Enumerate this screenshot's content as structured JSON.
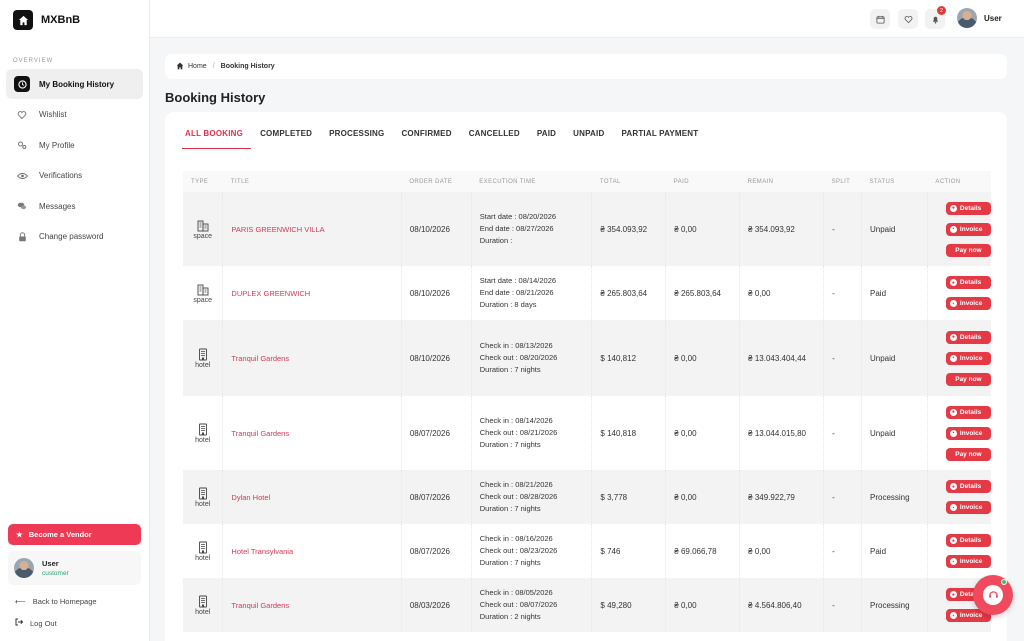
{
  "brand": {
    "name": "MXBnB",
    "logo_icon": "home-icon"
  },
  "sidebar": {
    "section_label": "OVERVIEW",
    "items": [
      {
        "label": "My Booking History",
        "icon": "clock-icon",
        "active": true
      },
      {
        "label": "Wishlist",
        "icon": "heart-icon",
        "active": false
      },
      {
        "label": "My Profile",
        "icon": "gears-icon",
        "active": false
      },
      {
        "label": "Verifications",
        "icon": "eye-icon",
        "active": false
      },
      {
        "label": "Messages",
        "icon": "chat-icon",
        "active": false
      },
      {
        "label": "Change password",
        "icon": "lock-icon",
        "active": false
      }
    ],
    "vendor_button": "Become a Vendor",
    "user": {
      "name": "User",
      "role": "customer"
    },
    "back_link": "Back to Homepage",
    "logout_link": "Log Out"
  },
  "topbar": {
    "user_name": "User",
    "notification_count": "2"
  },
  "breadcrumb": {
    "home": "Home",
    "current": "Booking History"
  },
  "page_title": "Booking History",
  "tabs": [
    "ALL BOOKING",
    "COMPLETED",
    "PROCESSING",
    "CONFIRMED",
    "CANCELLED",
    "PAID",
    "UNPAID",
    "PARTIAL PAYMENT"
  ],
  "table": {
    "headers": [
      "TYPE",
      "TITLE",
      "ORDER DATE",
      "EXECUTION TIME",
      "TOTAL",
      "PAID",
      "REMAIN",
      "SPLIT",
      "STATUS",
      "ACTION"
    ],
    "action_labels": {
      "details": "Details",
      "invoice": "Invoice",
      "pay": "Pay now"
    },
    "rows": [
      {
        "type": "space",
        "title": "PARIS GREENWICH VILLA",
        "order_date": "08/10/2026",
        "exec": [
          "Start date : 08/20/2026",
          "End date : 08/27/2026",
          "Duration :"
        ],
        "total": "₴ 354.093,92",
        "paid": "₴ 0,00",
        "remain": "₴ 354.093,92",
        "split": "-",
        "status": "Unpaid"
      },
      {
        "type": "space",
        "title": "DUPLEX GREENWICH",
        "order_date": "08/10/2026",
        "exec": [
          "Start date : 08/14/2026",
          "End date : 08/21/2026",
          "Duration : 8 days"
        ],
        "total": "₴ 265.803,64",
        "paid": "₴ 265.803,64",
        "remain": "₴ 0,00",
        "split": "-",
        "status": "Paid"
      },
      {
        "type": "hotel",
        "title": "Tranquil Gardens",
        "order_date": "08/10/2026",
        "exec": [
          "Check in : 08/13/2026",
          "Check out : 08/20/2026",
          "Duration : 7 nights"
        ],
        "total": "$ 140,812",
        "paid": "₴ 0,00",
        "remain": "₴ 13.043.404,44",
        "split": "-",
        "status": "Unpaid"
      },
      {
        "type": "hotel",
        "title": "Tranquil Gardens",
        "order_date": "08/07/2026",
        "exec": [
          "Check in : 08/14/2026",
          "Check out : 08/21/2026",
          "Duration : 7 nights"
        ],
        "total": "$ 140,818",
        "paid": "₴ 0,00",
        "remain": "₴ 13.044.015,80",
        "split": "-",
        "status": "Unpaid"
      },
      {
        "type": "hotel",
        "title": "Dylan Hotel",
        "order_date": "08/07/2026",
        "exec": [
          "Check in : 08/21/2026",
          "Check out : 08/28/2026",
          "Duration : 7 nights"
        ],
        "total": "$ 3,778",
        "paid": "₴ 0,00",
        "remain": "₴ 349.922,79",
        "split": "-",
        "status": "Processing"
      },
      {
        "type": "hotel",
        "title": "Hotel Transylvania",
        "order_date": "08/07/2026",
        "exec": [
          "Check in : 08/16/2026",
          "Check out : 08/23/2026",
          "Duration : 7 nights"
        ],
        "total": "$ 746",
        "paid": "₴ 69.066,78",
        "remain": "₴ 0,00",
        "split": "-",
        "status": "Paid"
      },
      {
        "type": "hotel",
        "title": "Tranquil Gardens",
        "order_date": "08/03/2026",
        "exec": [
          "Check in : 08/05/2026",
          "Check out : 08/07/2026",
          "Duration : 2 nights"
        ],
        "total": "$ 49,280",
        "paid": "₴ 0,00",
        "remain": "₴ 4.564.806,40",
        "split": "-",
        "status": "Processing"
      }
    ]
  },
  "colors": {
    "accent": "#e2304b",
    "button": "#e53945"
  }
}
